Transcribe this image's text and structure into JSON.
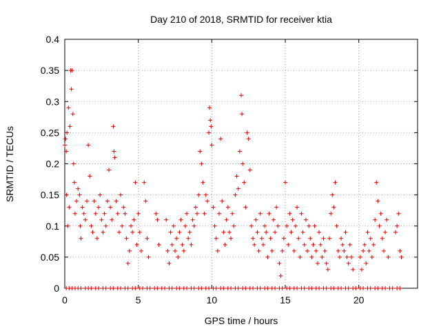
{
  "chart_data": {
    "type": "scatter",
    "title": "Day 210 of 2018, SRMTID for receiver ktia",
    "xlabel": "GPS time / hours",
    "ylabel": "SRMTID / TECUs",
    "xlim": [
      0,
      24
    ],
    "ylim": [
      0,
      0.4
    ],
    "xticks": [
      0,
      5,
      10,
      15,
      20
    ],
    "xtick_labels": [
      "0",
      "5",
      "10",
      "15",
      "20"
    ],
    "yticks": [
      0,
      0.05,
      0.1,
      0.15,
      0.2,
      0.25,
      0.3,
      0.35,
      0.4
    ],
    "ytick_labels": [
      "0",
      "0.05",
      "0.1",
      "0.15",
      "0.2",
      "0.25",
      "0.3",
      "0.35",
      "0.4"
    ],
    "grid": true,
    "marker": "+",
    "marker_color": "#e00000",
    "series": [
      {
        "name": "SRMTID",
        "points": [
          [
            0.0,
            0.23
          ],
          [
            0.05,
            0.24
          ],
          [
            0.1,
            0.22
          ],
          [
            0.12,
            0.15
          ],
          [
            0.15,
            0.25
          ],
          [
            0.2,
            0.1
          ],
          [
            0.25,
            0.29
          ],
          [
            0.3,
            0.13
          ],
          [
            0.35,
            0.26
          ],
          [
            0.4,
            0.35
          ],
          [
            0.45,
            0.32
          ],
          [
            0.5,
            0.35
          ],
          [
            0.55,
            0.28
          ],
          [
            0.6,
            0.2
          ],
          [
            0.65,
            0.17
          ],
          [
            0.7,
            0.12
          ],
          [
            0.8,
            0.14
          ],
          [
            0.9,
            0.16
          ],
          [
            1.0,
            0.15
          ],
          [
            1.05,
            0.1
          ],
          [
            1.1,
            0.08
          ],
          [
            1.2,
            0.13
          ],
          [
            1.3,
            0.12
          ],
          [
            1.4,
            0.11
          ],
          [
            1.5,
            0.14
          ],
          [
            1.6,
            0.23
          ],
          [
            1.7,
            0.18
          ],
          [
            1.8,
            0.1
          ],
          [
            1.9,
            0.09
          ],
          [
            2.0,
            0.14
          ],
          [
            2.1,
            0.12
          ],
          [
            2.2,
            0.08
          ],
          [
            2.3,
            0.13
          ],
          [
            2.4,
            0.15
          ],
          [
            2.5,
            0.11
          ],
          [
            2.6,
            0.09
          ],
          [
            2.7,
            0.12
          ],
          [
            2.8,
            0.1
          ],
          [
            2.9,
            0.14
          ],
          [
            3.0,
            0.19
          ],
          [
            3.1,
            0.13
          ],
          [
            3.2,
            0.11
          ],
          [
            3.3,
            0.26
          ],
          [
            3.35,
            0.22
          ],
          [
            3.4,
            0.21
          ],
          [
            3.5,
            0.14
          ],
          [
            3.6,
            0.12
          ],
          [
            3.7,
            0.09
          ],
          [
            3.8,
            0.15
          ],
          [
            3.9,
            0.1
          ],
          [
            4.0,
            0.13
          ],
          [
            4.1,
            0.12
          ],
          [
            4.2,
            0.08
          ],
          [
            4.3,
            0.04
          ],
          [
            4.4,
            0.06
          ],
          [
            4.5,
            0.1
          ],
          [
            4.6,
            0.09
          ],
          [
            4.7,
            0.11
          ],
          [
            4.8,
            0.17
          ],
          [
            4.9,
            0.07
          ],
          [
            5.0,
            0.12
          ],
          [
            5.1,
            0.09
          ],
          [
            5.2,
            0.06
          ],
          [
            5.4,
            0.17
          ],
          [
            5.5,
            0.14
          ],
          [
            5.6,
            0.08
          ],
          [
            5.7,
            0.05
          ],
          [
            6.2,
            0.12
          ],
          [
            6.3,
            0.11
          ],
          [
            6.4,
            0.07
          ],
          [
            6.9,
            0.11
          ],
          [
            7.0,
            0.06
          ],
          [
            7.1,
            0.04
          ],
          [
            7.2,
            0.09
          ],
          [
            7.3,
            0.07
          ],
          [
            7.4,
            0.1
          ],
          [
            7.5,
            0.06
          ],
          [
            7.6,
            0.08
          ],
          [
            7.7,
            0.05
          ],
          [
            7.8,
            0.09
          ],
          [
            7.9,
            0.11
          ],
          [
            8.0,
            0.07
          ],
          [
            8.1,
            0.06
          ],
          [
            8.2,
            0.1
          ],
          [
            8.3,
            0.12
          ],
          [
            8.4,
            0.08
          ],
          [
            8.5,
            0.09
          ],
          [
            8.6,
            0.07
          ],
          [
            8.7,
            0.11
          ],
          [
            8.8,
            0.1
          ],
          [
            8.9,
            0.13
          ],
          [
            9.0,
            0.12
          ],
          [
            9.1,
            0.15
          ],
          [
            9.2,
            0.22
          ],
          [
            9.3,
            0.2
          ],
          [
            9.4,
            0.17
          ],
          [
            9.5,
            0.12
          ],
          [
            9.6,
            0.15
          ],
          [
            9.7,
            0.14
          ],
          [
            9.8,
            0.25
          ],
          [
            9.85,
            0.29
          ],
          [
            9.9,
            0.27
          ],
          [
            9.95,
            0.26
          ],
          [
            10.0,
            0.23
          ],
          [
            10.1,
            0.13
          ],
          [
            10.2,
            0.1
          ],
          [
            10.3,
            0.08
          ],
          [
            10.4,
            0.06
          ],
          [
            10.5,
            0.12
          ],
          [
            10.6,
            0.24
          ],
          [
            10.7,
            0.14
          ],
          [
            10.8,
            0.09
          ],
          [
            10.9,
            0.07
          ],
          [
            11.0,
            0.11
          ],
          [
            11.1,
            0.13
          ],
          [
            11.2,
            0.09
          ],
          [
            11.3,
            0.08
          ],
          [
            11.4,
            0.12
          ],
          [
            11.5,
            0.1
          ],
          [
            11.6,
            0.15
          ],
          [
            11.7,
            0.18
          ],
          [
            11.8,
            0.16
          ],
          [
            11.9,
            0.22
          ],
          [
            12.0,
            0.31
          ],
          [
            12.05,
            0.28
          ],
          [
            12.1,
            0.2
          ],
          [
            12.2,
            0.17
          ],
          [
            12.3,
            0.13
          ],
          [
            12.4,
            0.25
          ],
          [
            12.5,
            0.24
          ],
          [
            12.6,
            0.19
          ],
          [
            12.7,
            0.1
          ],
          [
            12.8,
            0.08
          ],
          [
            12.9,
            0.07
          ],
          [
            13.0,
            0.11
          ],
          [
            13.1,
            0.09
          ],
          [
            13.2,
            0.06
          ],
          [
            13.3,
            0.12
          ],
          [
            13.4,
            0.08
          ],
          [
            13.5,
            0.07
          ],
          [
            13.6,
            0.1
          ],
          [
            13.7,
            0.09
          ],
          [
            13.8,
            0.05
          ],
          [
            13.9,
            0.12
          ],
          [
            14.0,
            0.08
          ],
          [
            14.1,
            0.06
          ],
          [
            14.2,
            0.11
          ],
          [
            14.3,
            0.09
          ],
          [
            14.4,
            0.13
          ],
          [
            14.5,
            0.1
          ],
          [
            14.6,
            0.04
          ],
          [
            14.7,
            0.02
          ],
          [
            14.8,
            0.06
          ],
          [
            14.9,
            0.08
          ],
          [
            15.0,
            0.17
          ],
          [
            15.1,
            0.1
          ],
          [
            15.2,
            0.07
          ],
          [
            15.3,
            0.12
          ],
          [
            15.4,
            0.09
          ],
          [
            15.5,
            0.11
          ],
          [
            15.6,
            0.06
          ],
          [
            15.7,
            0.1
          ],
          [
            15.8,
            0.13
          ],
          [
            15.9,
            0.08
          ],
          [
            16.0,
            0.05
          ],
          [
            16.1,
            0.12
          ],
          [
            16.2,
            0.09
          ],
          [
            16.3,
            0.07
          ],
          [
            16.4,
            0.11
          ],
          [
            16.5,
            0.06
          ],
          [
            16.6,
            0.1
          ],
          [
            16.7,
            0.08
          ],
          [
            16.8,
            0.05
          ],
          [
            16.9,
            0.07
          ],
          [
            17.0,
            0.1
          ],
          [
            17.1,
            0.06
          ],
          [
            17.2,
            0.04
          ],
          [
            17.3,
            0.09
          ],
          [
            17.4,
            0.07
          ],
          [
            17.5,
            0.05
          ],
          [
            17.6,
            0.08
          ],
          [
            17.7,
            0.06
          ],
          [
            17.8,
            0.04
          ],
          [
            17.9,
            0.03
          ],
          [
            18.0,
            0.08
          ],
          [
            18.1,
            0.12
          ],
          [
            18.2,
            0.15
          ],
          [
            18.3,
            0.13
          ],
          [
            18.4,
            0.17
          ],
          [
            18.5,
            0.1
          ],
          [
            18.6,
            0.06
          ],
          [
            18.7,
            0.05
          ],
          [
            18.8,
            0.08
          ],
          [
            18.9,
            0.07
          ],
          [
            19.0,
            0.06
          ],
          [
            19.1,
            0.09
          ],
          [
            19.2,
            0.05
          ],
          [
            19.3,
            0.04
          ],
          [
            19.4,
            0.07
          ],
          [
            19.5,
            0.05
          ],
          [
            19.6,
            0.03
          ],
          [
            20.1,
            0.05
          ],
          [
            20.2,
            0.03
          ],
          [
            20.3,
            0.06
          ],
          [
            20.4,
            0.07
          ],
          [
            20.5,
            0.04
          ],
          [
            20.6,
            0.09
          ],
          [
            20.7,
            0.06
          ],
          [
            20.8,
            0.08
          ],
          [
            20.9,
            0.05
          ],
          [
            21.0,
            0.07
          ],
          [
            21.1,
            0.11
          ],
          [
            21.2,
            0.17
          ],
          [
            21.3,
            0.14
          ],
          [
            21.4,
            0.1
          ],
          [
            21.5,
            0.12
          ],
          [
            21.6,
            0.08
          ],
          [
            21.7,
            0.06
          ],
          [
            21.8,
            0.09
          ],
          [
            21.9,
            0.11
          ],
          [
            22.0,
            0.05
          ],
          [
            22.5,
            0.09
          ],
          [
            22.6,
            0.1
          ],
          [
            22.7,
            0.12
          ],
          [
            22.8,
            0.06
          ],
          [
            22.9,
            0.05
          ]
        ]
      }
    ],
    "zero_row_x": [
      0.1,
      0.3,
      0.5,
      0.7,
      0.9,
      1.1,
      1.4,
      1.6,
      1.8,
      2.1,
      2.3,
      2.6,
      2.8,
      3.1,
      3.3,
      3.6,
      3.8,
      4.1,
      4.3,
      4.6,
      4.8,
      5.1,
      5.3,
      5.6,
      5.8,
      6.1,
      6.3,
      6.6,
      6.8,
      7.1,
      7.3,
      7.6,
      7.8,
      8.1,
      8.3,
      8.6,
      8.8,
      9.1,
      9.3,
      9.6,
      9.8,
      10.1,
      10.3,
      10.6,
      10.8,
      11.1,
      11.3,
      11.6,
      11.8,
      12.1,
      12.3,
      12.6,
      12.8,
      13.1,
      13.3,
      13.6,
      13.8,
      14.1,
      14.3,
      14.6,
      14.8,
      15.1,
      15.3,
      15.6,
      15.8,
      16.1,
      16.3,
      16.6,
      16.8,
      17.1,
      17.3,
      17.6,
      17.8,
      18.1,
      18.3,
      18.6,
      18.8,
      19.1,
      19.3,
      19.6,
      19.8,
      20.1,
      20.3,
      20.6,
      20.8,
      21.1,
      21.3,
      21.6,
      21.8,
      22.1,
      22.3,
      22.6,
      22.8
    ]
  }
}
